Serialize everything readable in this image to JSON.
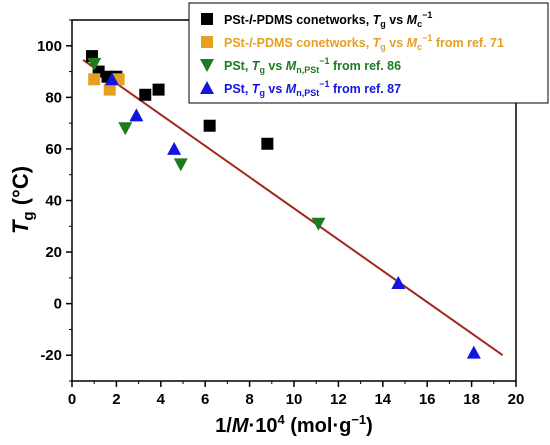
{
  "chart_data": {
    "type": "scatter",
    "xlabel": {
      "main": "1/",
      "var": "M",
      "rest": "·10",
      "sup": "4",
      "unit": " (mol·g",
      "unitsup": "−1",
      "close": ")"
    },
    "ylabel": {
      "main": "T",
      "sub": "g",
      "unit": " (°C)"
    },
    "xlim": [
      0,
      20
    ],
    "ylim": [
      -30,
      110
    ],
    "xticks": [
      0,
      2,
      4,
      6,
      8,
      10,
      12,
      14,
      16,
      18,
      20
    ],
    "yticks": [
      -20,
      0,
      20,
      40,
      60,
      80,
      100
    ],
    "grid": false,
    "legend_position": "top-right",
    "series": [
      {
        "name": "PSt-l-PDMS conetworks, Tg vs Mc−1",
        "color": "#000000",
        "marker": "square",
        "points": [
          [
            0.9,
            96
          ],
          [
            1.2,
            90
          ],
          [
            1.6,
            88
          ],
          [
            2.0,
            88
          ],
          [
            3.3,
            81
          ],
          [
            3.9,
            83
          ],
          [
            6.2,
            69
          ],
          [
            8.8,
            62
          ]
        ]
      },
      {
        "name": "PSt-l-PDMS conetworks, Tg vs Mc−1 from ref. 71",
        "color": "#E5A024",
        "marker": "square",
        "points": [
          [
            1.0,
            87
          ],
          [
            1.7,
            83
          ],
          [
            2.1,
            87
          ]
        ]
      },
      {
        "name": "PSt, Tg vs Mn,PSt−1 from ref. 86",
        "color": "#1E7A1E",
        "marker": "triangle-down",
        "points": [
          [
            1.0,
            93
          ],
          [
            2.4,
            68
          ],
          [
            4.9,
            54
          ],
          [
            11.1,
            31
          ]
        ]
      },
      {
        "name": "PSt, Tg vs Mn,PSt−1 from ref. 87",
        "color": "#1414E0",
        "marker": "triangle-up",
        "points": [
          [
            1.8,
            87
          ],
          [
            2.9,
            73
          ],
          [
            4.6,
            60
          ],
          [
            14.7,
            8
          ],
          [
            18.1,
            -19
          ]
        ]
      }
    ],
    "fit_line": {
      "color": "#A0281E",
      "points": [
        [
          0.5,
          94.5
        ],
        [
          19.4,
          -20
        ]
      ]
    }
  },
  "legend": {
    "items": [
      {
        "pre": "PSt-",
        "ital": "l",
        "mid": "-PDMS conetworks, ",
        "v1": "T",
        "v1sub": "g",
        "vs": " vs ",
        "v2": "M",
        "v2sub": "c",
        "v2sup": "−1",
        "post": "",
        "color": "#000000",
        "marker": "square"
      },
      {
        "pre": "PSt-",
        "ital": "l",
        "mid": "-PDMS conetworks, ",
        "v1": "T",
        "v1sub": "g",
        "vs": " vs ",
        "v2": "M",
        "v2sub": "c",
        "v2sup": "−1",
        "post": " from ref. 71",
        "color": "#E5A024",
        "marker": "square"
      },
      {
        "pre": "PSt, ",
        "ital": "",
        "mid": "",
        "v1": "T",
        "v1sub": "g",
        "vs": " vs ",
        "v2": "M",
        "v2sub": "n,PSt",
        "v2sup": "−1",
        "post": " from ref. 86",
        "color": "#1E7A1E",
        "marker": "triangle-down"
      },
      {
        "pre": "PSt, ",
        "ital": "",
        "mid": "",
        "v1": "T",
        "v1sub": "g",
        "vs": " vs ",
        "v2": "M",
        "v2sub": "n,PSt",
        "v2sup": "−1",
        "post": " from ref. 87",
        "color": "#1414E0",
        "marker": "triangle-up"
      }
    ]
  }
}
